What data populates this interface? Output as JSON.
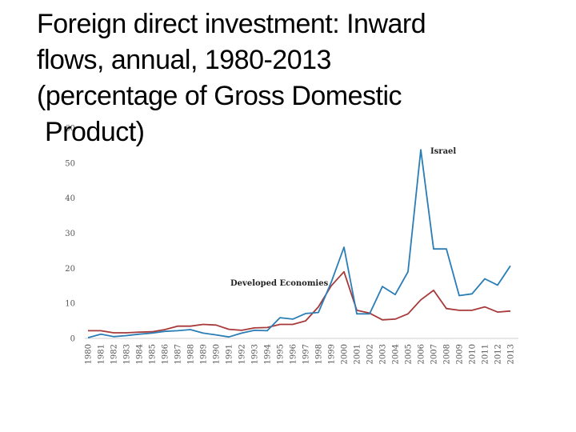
{
  "title_lines": [
    "Foreign direct investment: Inward",
    "flows, annual, 1980-2013",
    "(percentage of Gross Domestic",
    "Product)"
  ],
  "chart_data": {
    "type": "line",
    "title": "Foreign direct investment: Inward flows, annual, 1980-2013 (percentage of Gross Domestic Product)",
    "xlabel": "",
    "ylabel": "",
    "ylim": [
      0,
      60
    ],
    "yticks": [
      0,
      10,
      20,
      30,
      40,
      50,
      60
    ],
    "grid": false,
    "legend": "none (series labelled directly on the chart)",
    "x": [
      "1980",
      "1981",
      "1982",
      "1983",
      "1984",
      "1985",
      "1986",
      "1987",
      "1988",
      "1989",
      "1990",
      "1991",
      "1992",
      "1993",
      "1994",
      "1995",
      "1996",
      "1997",
      "1998",
      "1999",
      "2000",
      "2001",
      "2002",
      "2003",
      "2004",
      "2005",
      "2006",
      "2007",
      "2008",
      "2009",
      "2010",
      "2011",
      "2012",
      "2013"
    ],
    "series": [
      {
        "name": "Israel",
        "color": "#2a7db5",
        "values": [
          0.2,
          1.2,
          0.5,
          0.8,
          1.2,
          1.5,
          2.0,
          2.2,
          2.5,
          1.5,
          1.0,
          0.4,
          1.5,
          2.3,
          2.2,
          5.9,
          5.5,
          7.1,
          7.4,
          16.0,
          26.0,
          7.0,
          7.0,
          14.8,
          12.5,
          19.0,
          53.8,
          25.5,
          25.5,
          12.2,
          12.7,
          17.0,
          15.2,
          20.7
        ]
      },
      {
        "name": "Developed Economies",
        "color": "#a8393a",
        "values": [
          2.2,
          2.2,
          1.6,
          1.6,
          1.8,
          1.9,
          2.5,
          3.5,
          3.5,
          4.0,
          3.8,
          2.6,
          2.3,
          3.0,
          3.1,
          4.0,
          4.0,
          5.0,
          9.0,
          15.0,
          19.0,
          8.0,
          7.2,
          5.3,
          5.5,
          7.0,
          11.0,
          13.7,
          8.5,
          8.0,
          8.0,
          9.0,
          7.5,
          7.8
        ]
      }
    ]
  }
}
